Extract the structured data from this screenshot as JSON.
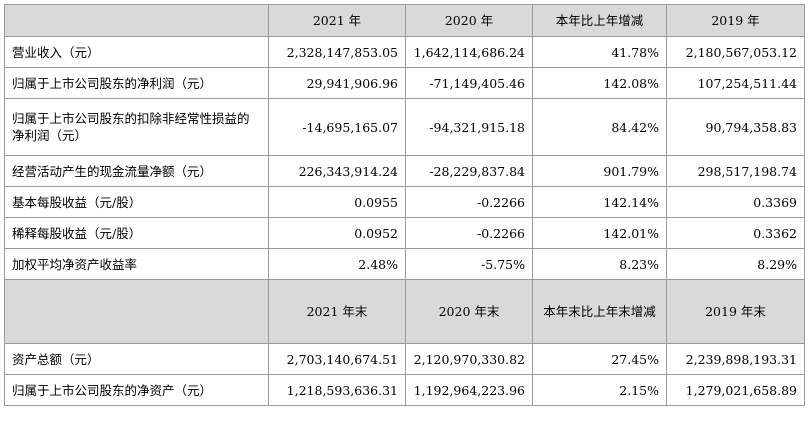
{
  "header1": [
    "",
    "2021 年",
    "2020 年",
    "本年比上年增减",
    "2019 年"
  ],
  "rows1": [
    {
      "label": "营业收入（元）",
      "values": [
        "2,328,147,853.05",
        "1,642,114,686.24",
        "41.78%",
        "2,180,567,053.12"
      ]
    },
    {
      "label": "归属于上市公司股东的净利润（元）",
      "values": [
        "29,941,906.96",
        "-71,149,405.46",
        "142.08%",
        "107,254,511.44"
      ]
    },
    {
      "label": "归属于上市公司股东的扣除非经常性损益的净利润（元）",
      "values": [
        "-14,695,165.07",
        "-94,321,915.18",
        "84.42%",
        "90,794,358.83"
      ]
    },
    {
      "label": "经营活动产生的现金流量净额（元）",
      "values": [
        "226,343,914.24",
        "-28,229,837.84",
        "901.79%",
        "298,517,198.74"
      ]
    },
    {
      "label": "基本每股收益（元/股）",
      "values": [
        "0.0955",
        "-0.2266",
        "142.14%",
        "0.3369"
      ]
    },
    {
      "label": "稀释每股收益（元/股）",
      "values": [
        "0.0952",
        "-0.2266",
        "142.01%",
        "0.3362"
      ]
    },
    {
      "label": "加权平均净资产收益率",
      "values": [
        "2.48%",
        "-5.75%",
        "8.23%",
        "8.29%"
      ]
    }
  ],
  "header2": [
    "",
    "2021 年末",
    "2020 年末",
    "本年末比上年末增减",
    "2019 年末"
  ],
  "rows2": [
    {
      "label": "资产总额（元）",
      "values": [
        "2,703,140,674.51",
        "2,120,970,330.82",
        "27.45%",
        "2,239,898,193.31"
      ]
    },
    {
      "label": "归属于上市公司股东的净资产（元）",
      "values": [
        "1,218,593,636.31",
        "1,192,964,223.96",
        "2.15%",
        "1,279,021,658.89"
      ]
    }
  ]
}
